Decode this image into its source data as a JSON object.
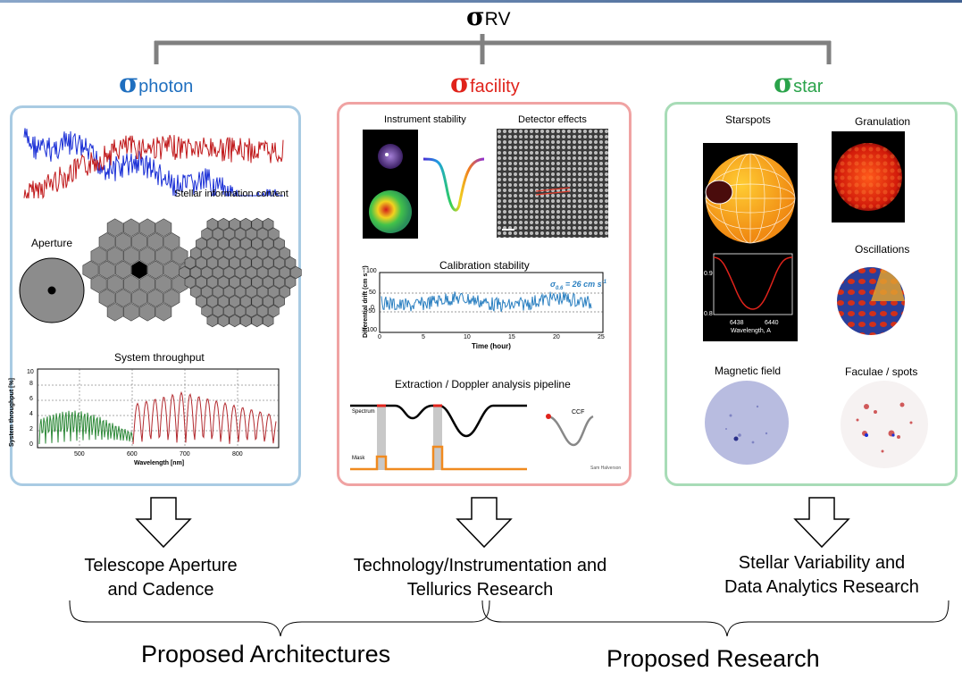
{
  "header": {
    "sigma": "σ",
    "sub": "RV"
  },
  "photon": {
    "sigma": "σ",
    "sub": "photon",
    "color": "#1f6fbf",
    "stellar_info": "Stellar information content",
    "aperture": "Aperture",
    "throughput_title": "System throughput",
    "throughput_ylabel": "System throughput [%]",
    "throughput_xlabel": "Wavelength [nm]",
    "throughput_xticks": [
      "500",
      "600",
      "700",
      "800"
    ],
    "throughput_yticks": [
      "10",
      "8",
      "6",
      "4",
      "2",
      "0"
    ]
  },
  "facility": {
    "sigma": "σ",
    "sub": "facility",
    "color": "#e0231b",
    "instrument_stability": "Instrument stability",
    "detector_effects": "Detector effects",
    "calibration_title": "Calibration stability",
    "calib_annot": "σ",
    "calib_annot_sub": "0.6",
    "calib_annot_rest": "= 26 cm s",
    "calib_annot_sup": "-1",
    "calib_ylabel": "Differential drift (cm s⁻¹)",
    "calib_xlabel": "Time (hour)",
    "calib_xticks": [
      "0",
      "5",
      "10",
      "15",
      "20",
      "25"
    ],
    "calib_yticks": [
      "100",
      "50",
      "0",
      "-50",
      "-100"
    ],
    "pipeline_title": "Extraction / Doppler analysis pipeline",
    "spectrum": "Spectrum",
    "mask": "Mask",
    "ccf": "CCF",
    "credit": "Sam Halverson"
  },
  "star": {
    "sigma": "σ",
    "sub": "star",
    "color": "#2aa34a",
    "starspots": "Starspots",
    "granulation": "Granulation",
    "oscillations": "Oscillations",
    "magnetic_field": "Magnetic field",
    "faculae": "Faculae / spots",
    "line_yticks": [
      "0.9",
      "0.8"
    ],
    "line_xticks": [
      "6438",
      "6440"
    ],
    "line_xlabel": "Wavelength, A"
  },
  "outcomes": {
    "photon": [
      "Telescope Aperture",
      "and Cadence"
    ],
    "facility": [
      "Technology/Instrumentation and",
      "Tellurics Research"
    ],
    "star": [
      "Stellar Variability and",
      "Data Analytics Research"
    ]
  },
  "groups": {
    "architectures": "Proposed Architectures",
    "research": "Proposed Research"
  }
}
